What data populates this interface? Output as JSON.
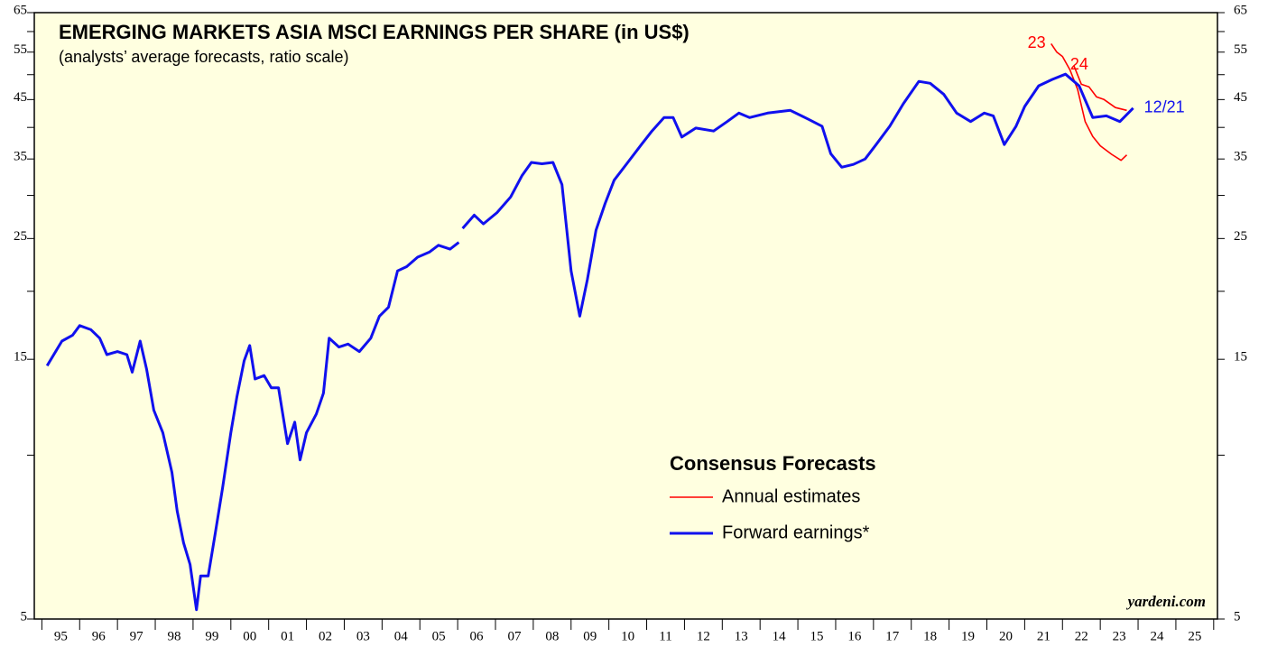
{
  "chart_data": {
    "type": "line",
    "title": "EMERGING MARKETS ASIA MSCI EARNINGS PER SHARE (in US$)",
    "subtitle": "(analysts’ average forecasts, ratio scale)",
    "source": "yardeni.com",
    "legend_title": "Consensus Forecasts",
    "background": "#ffffe0",
    "yscale": "log",
    "ylim": [
      5,
      65
    ],
    "yticks": [
      5,
      15,
      25,
      35,
      45,
      55,
      65
    ],
    "yminor_ticks": [
      10,
      20,
      30,
      40,
      50,
      60
    ],
    "xlim": [
      1994.8,
      2026.1
    ],
    "xticks": [
      {
        "value": 1995.5,
        "label": "95"
      },
      {
        "value": 1996.5,
        "label": "96"
      },
      {
        "value": 1997.5,
        "label": "97"
      },
      {
        "value": 1998.5,
        "label": "98"
      },
      {
        "value": 1999.5,
        "label": "99"
      },
      {
        "value": 2000.5,
        "label": "00"
      },
      {
        "value": 2001.5,
        "label": "01"
      },
      {
        "value": 2002.5,
        "label": "02"
      },
      {
        "value": 2003.5,
        "label": "03"
      },
      {
        "value": 2004.5,
        "label": "04"
      },
      {
        "value": 2005.5,
        "label": "05"
      },
      {
        "value": 2006.5,
        "label": "06"
      },
      {
        "value": 2007.5,
        "label": "07"
      },
      {
        "value": 2008.5,
        "label": "08"
      },
      {
        "value": 2009.5,
        "label": "09"
      },
      {
        "value": 2010.5,
        "label": "10"
      },
      {
        "value": 2011.5,
        "label": "11"
      },
      {
        "value": 2012.5,
        "label": "12"
      },
      {
        "value": 2013.5,
        "label": "13"
      },
      {
        "value": 2014.5,
        "label": "14"
      },
      {
        "value": 2015.5,
        "label": "15"
      },
      {
        "value": 2016.5,
        "label": "16"
      },
      {
        "value": 2017.5,
        "label": "17"
      },
      {
        "value": 2018.5,
        "label": "18"
      },
      {
        "value": 2019.5,
        "label": "19"
      },
      {
        "value": 2020.5,
        "label": "20"
      },
      {
        "value": 2021.5,
        "label": "21"
      },
      {
        "value": 2022.5,
        "label": "22"
      },
      {
        "value": 2023.5,
        "label": "23"
      },
      {
        "value": 2024.5,
        "label": "24"
      },
      {
        "value": 2025.5,
        "label": "25"
      }
    ],
    "xminor_ticks": [
      1995,
      1996,
      1997,
      1998,
      1999,
      2000,
      2001,
      2002,
      2003,
      2004,
      2005,
      2006,
      2007,
      2008,
      2009,
      2010,
      2011,
      2012,
      2013,
      2014,
      2015,
      2016,
      2017,
      2018,
      2019,
      2020,
      2021,
      2022,
      2023,
      2024,
      2025,
      2026
    ],
    "series": [
      {
        "name": "Annual estimates",
        "color": "#ff0000",
        "lines": [
          {
            "label": "23",
            "x": [
              2021.7,
              2021.85,
              2022.0,
              2022.2,
              2022.4,
              2022.6,
              2022.8,
              2023.0,
              2023.3,
              2023.55,
              2023.7
            ],
            "values": [
              57,
              55,
              54,
              51,
              47,
              41,
              38.5,
              37,
              35.7,
              34.8,
              35.6
            ]
          },
          {
            "label": "24",
            "x": [
              2022.3,
              2022.5,
              2022.7,
              2022.9,
              2023.1,
              2023.4,
              2023.7
            ],
            "values": [
              52,
              48,
              47.5,
              45.5,
              45,
              43.5,
              43
            ]
          }
        ]
      },
      {
        "name": "Forward earnings*",
        "color": "#1010ee",
        "end_label": "12/21",
        "x": [
          1995.14,
          1995.53,
          1995.81,
          1996.0,
          1996.3,
          1996.53,
          1996.72,
          1997.0,
          1997.25,
          1997.39,
          1997.6,
          1997.77,
          1997.96,
          1998.2,
          1998.44,
          1998.58,
          1998.75,
          1998.92,
          1999.09,
          1999.2,
          1999.4,
          1999.59,
          1999.78,
          2000.0,
          2000.16,
          2000.35,
          2000.5,
          2000.64,
          2000.88,
          2001.07,
          2001.26,
          2001.5,
          2001.69,
          2001.83,
          2002.0,
          2002.26,
          2002.45,
          2002.6,
          2002.86,
          2003.1,
          2003.4,
          2003.7,
          2003.93,
          2004.17,
          2004.41,
          2004.65,
          2004.94,
          2005.25,
          2005.49,
          2005.8,
          2006.03,
          2006.08,
          2006.13,
          2006.44,
          2006.68,
          2007.04,
          2007.4,
          2007.7,
          2007.95,
          2008.23,
          2008.52,
          2008.76,
          2009.0,
          2009.23,
          2009.43,
          2009.66,
          2009.9,
          2010.14,
          2010.5,
          2010.86,
          2011.14,
          2011.46,
          2011.7,
          2011.93,
          2012.3,
          2012.77,
          2013.13,
          2013.44,
          2013.72,
          2014.2,
          2014.8,
          2015.28,
          2015.64,
          2015.87,
          2016.16,
          2016.47,
          2016.78,
          2017.07,
          2017.43,
          2017.79,
          2018.2,
          2018.5,
          2018.86,
          2019.2,
          2019.57,
          2019.93,
          2020.17,
          2020.46,
          2020.77,
          2021.0,
          2021.37,
          2021.73,
          2022.08,
          2022.44,
          2022.8,
          2023.16,
          2023.52,
          2023.87
        ],
        "values": [
          14.6,
          16.2,
          16.6,
          17.3,
          17.0,
          16.4,
          15.3,
          15.5,
          15.3,
          14.2,
          16.2,
          14.4,
          12.1,
          11.0,
          9.3,
          7.9,
          6.9,
          6.3,
          5.2,
          6.0,
          6.0,
          7.2,
          8.7,
          11.0,
          12.8,
          14.9,
          15.9,
          13.8,
          14.0,
          13.3,
          13.3,
          10.5,
          11.5,
          9.8,
          11.0,
          11.9,
          13.0,
          16.4,
          15.8,
          16.0,
          15.5,
          16.4,
          18.0,
          18.7,
          21.8,
          22.2,
          23.1,
          23.6,
          24.3,
          23.9,
          24.6,
          null,
          26.1,
          27.6,
          26.6,
          27.9,
          29.8,
          32.6,
          34.5,
          34.3,
          34.5,
          31.4,
          21.8,
          18.0,
          21.0,
          25.9,
          29.0,
          32.0,
          34.5,
          37.2,
          39.4,
          41.7,
          41.7,
          38.4,
          39.9,
          39.4,
          41.0,
          42.5,
          41.7,
          42.5,
          43.0,
          41.4,
          40.2,
          35.8,
          33.8,
          34.2,
          35.0,
          37.2,
          40.2,
          44.2,
          48.6,
          48.2,
          46.0,
          42.5,
          41.0,
          42.5,
          42.0,
          37.2,
          40.2,
          43.7,
          47.7,
          49.0,
          50.1,
          47.7,
          41.7,
          42.0,
          41.0,
          43.4
        ]
      }
    ]
  }
}
